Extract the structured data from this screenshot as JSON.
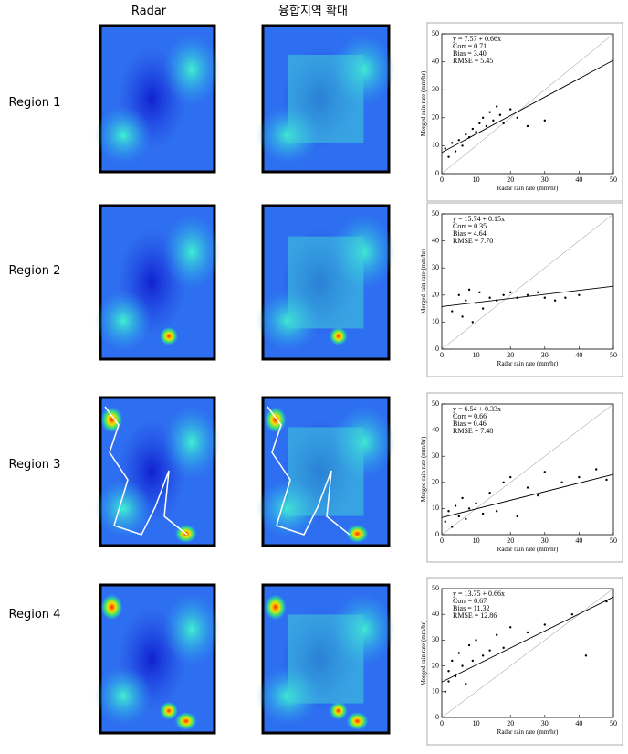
{
  "column_headers": [
    "Radar",
    "융합지역 확대"
  ],
  "row_labels": [
    "Region 1",
    "Region 2",
    "Region 3",
    "Region 4"
  ],
  "chart_data": [
    {
      "type": "scatter",
      "x_label": "Radar rain rate (mm/hr)",
      "y_label": "Merged rain rate (mm/hr)",
      "stats": [
        "y =  7.57 + 0.66x",
        "Corr =  0.71",
        "Bias =  3.40",
        "RMSE =  5.45"
      ],
      "fit": {
        "intercept": 7.57,
        "slope": 0.66
      },
      "xlim": [
        0,
        50
      ],
      "ylim": [
        0,
        50
      ],
      "xticks": [
        0,
        10,
        20,
        30,
        40,
        50
      ],
      "yticks": [
        0,
        10,
        20,
        30,
        40,
        50
      ],
      "color": "#000000",
      "x": [
        1,
        2,
        3,
        4,
        5,
        6,
        7,
        8,
        9,
        10,
        11,
        12,
        13,
        14,
        15,
        16,
        17,
        18,
        20,
        22,
        25,
        30
      ],
      "values": [
        9,
        6,
        11,
        8,
        12,
        10,
        14,
        13,
        16,
        15,
        18,
        20,
        17,
        22,
        19,
        24,
        21,
        18,
        23,
        20,
        17,
        19
      ]
    },
    {
      "type": "scatter",
      "x_label": "Radar rain rate (mm/hr)",
      "y_label": "Merged rain rate (mm/hr)",
      "stats": [
        "y =  15.74 + 0.15x",
        "Corr =  0.35",
        "Bias =  4.64",
        "RMSE =  7.70"
      ],
      "fit": {
        "intercept": 15.74,
        "slope": 0.15
      },
      "xlim": [
        0,
        50
      ],
      "ylim": [
        0,
        50
      ],
      "xticks": [
        0,
        10,
        20,
        30,
        40,
        50
      ],
      "yticks": [
        0,
        10,
        20,
        30,
        40,
        50
      ],
      "color": "#000000",
      "x": [
        3,
        5,
        6,
        7,
        8,
        9,
        10,
        11,
        12,
        14,
        16,
        18,
        20,
        22,
        25,
        28,
        30,
        33,
        36,
        40
      ],
      "values": [
        14,
        20,
        12,
        18,
        22,
        10,
        17,
        21,
        15,
        19,
        18,
        20,
        21,
        19,
        20,
        21,
        19,
        18,
        19,
        20
      ]
    },
    {
      "type": "scatter",
      "x_label": "Radar rain rate (mm/hr)",
      "y_label": "Merged rain rate (mm/hr)",
      "stats": [
        "y =  6.54 + 0.33x",
        "Corr =  0.66",
        "Bias =  0.46",
        "RMSE =  7.48"
      ],
      "fit": {
        "intercept": 6.54,
        "slope": 0.33
      },
      "xlim": [
        0,
        50
      ],
      "ylim": [
        0,
        50
      ],
      "xticks": [
        0,
        10,
        20,
        30,
        40,
        50
      ],
      "yticks": [
        0,
        10,
        20,
        30,
        40,
        50
      ],
      "color": "#000000",
      "x": [
        1,
        2,
        3,
        4,
        5,
        6,
        7,
        8,
        10,
        12,
        14,
        16,
        18,
        20,
        22,
        25,
        28,
        30,
        35,
        40,
        45,
        48
      ],
      "values": [
        5,
        9,
        3,
        11,
        7,
        14,
        6,
        10,
        12,
        8,
        16,
        9,
        20,
        22,
        7,
        18,
        15,
        24,
        20,
        22,
        25,
        21
      ]
    },
    {
      "type": "scatter",
      "x_label": "Radar rain rate (mm/hr)",
      "y_label": "Merged rain rate (mm/hr)",
      "stats": [
        "y =  13.75 + 0.66x",
        "Corr =  0.67",
        "Bias =  11.32",
        "RMSE =  12.86"
      ],
      "fit": {
        "intercept": 13.75,
        "slope": 0.66
      },
      "xlim": [
        0,
        50
      ],
      "ylim": [
        0,
        50
      ],
      "xticks": [
        0,
        10,
        20,
        30,
        40,
        50
      ],
      "yticks": [
        0,
        10,
        20,
        30,
        40,
        50
      ],
      "color": "#000000",
      "x": [
        1,
        2,
        2,
        3,
        4,
        5,
        6,
        7,
        8,
        9,
        10,
        12,
        14,
        16,
        18,
        20,
        25,
        30,
        38,
        42,
        48
      ],
      "values": [
        10,
        18,
        14,
        22,
        16,
        25,
        20,
        13,
        28,
        22,
        30,
        24,
        26,
        32,
        27,
        35,
        33,
        36,
        40,
        24,
        45
      ]
    }
  ]
}
